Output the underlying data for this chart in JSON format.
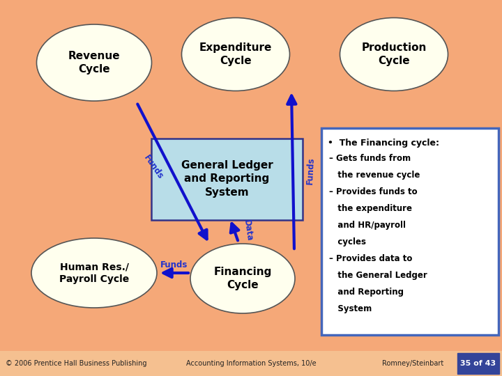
{
  "bg_color": "#f5a878",
  "ellipse_fill": "#ffffee",
  "ellipse_edge": "#555555",
  "gl_box_fill": "#b8dde8",
  "gl_box_edge": "#333388",
  "info_box_fill": "#ffffff",
  "info_box_edge": "#4466bb",
  "arrow_color": "#1111cc",
  "text_color": "#000000",
  "label_color": "#2233cc",
  "footer_bg": "#f5c090",
  "footer_left": "© 2006 Prentice Hall Business Publishing",
  "footer_center": "Accounting Information Systems, 10/e",
  "footer_right": "Romney/Steinbart",
  "footer_page": "35 of 43",
  "page_box_color": "#334499"
}
